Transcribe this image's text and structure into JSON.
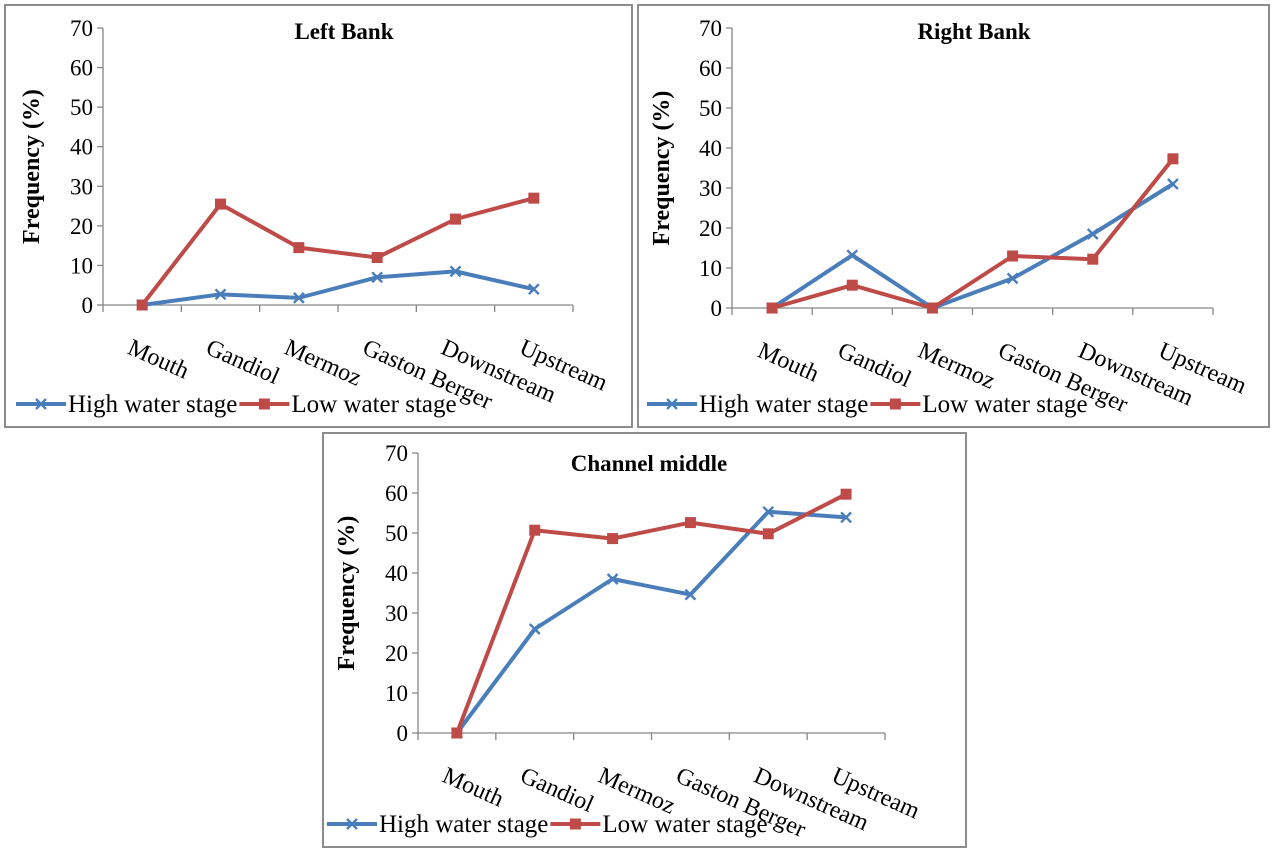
{
  "colors": {
    "high": "#4a7ebb",
    "low": "#be4b48",
    "axis": "#868686"
  },
  "chart_data": [
    {
      "type": "line",
      "title": "Left Bank",
      "ylabel": "Frequency (%)",
      "xlabel": "",
      "ylim": [
        0,
        70
      ],
      "yticks": [
        "0",
        "10",
        "20",
        "30",
        "40",
        "50",
        "60",
        "70"
      ],
      "categories": [
        "Mouth",
        "Gandiol",
        "Mermoz",
        "Gaston Berger",
        "Downstream",
        "Upstream"
      ],
      "legend_position": "bottom",
      "series": [
        {
          "name": "High water stage",
          "marker": "x",
          "values": [
            0,
            2.7,
            1.8,
            7,
            8.5,
            4
          ]
        },
        {
          "name": "Low water stage",
          "marker": "square",
          "values": [
            0,
            25.5,
            14.5,
            12,
            21.7,
            27
          ]
        }
      ]
    },
    {
      "type": "line",
      "title": "Right Bank",
      "ylabel": "Frequency (%)",
      "xlabel": "",
      "ylim": [
        0,
        70
      ],
      "yticks": [
        "0",
        "10",
        "20",
        "30",
        "40",
        "50",
        "60",
        "70"
      ],
      "categories": [
        "Mouth",
        "Gandiol",
        "Mermoz",
        "Gaston Berger",
        "Downstream",
        "Upstream"
      ],
      "legend_position": "bottom",
      "series": [
        {
          "name": "High water stage",
          "marker": "x",
          "values": [
            0,
            13.2,
            0,
            7.4,
            18.5,
            31
          ]
        },
        {
          "name": "Low water stage",
          "marker": "square",
          "values": [
            0,
            5.7,
            0,
            13,
            12.2,
            37.3
          ]
        }
      ]
    },
    {
      "type": "line",
      "title": "Channel middle",
      "ylabel": "Frequency (%)",
      "xlabel": "",
      "ylim": [
        0,
        70
      ],
      "yticks": [
        "0",
        "10",
        "20",
        "30",
        "40",
        "50",
        "60",
        "70"
      ],
      "categories": [
        "Mouth",
        "Gandiol",
        "Mermoz",
        "Gaston Berger",
        "Downstream",
        "Upstream"
      ],
      "legend_position": "bottom",
      "series": [
        {
          "name": "High water stage",
          "marker": "x",
          "values": [
            0,
            26,
            38.5,
            34.6,
            55.3,
            53.9
          ]
        },
        {
          "name": "Low water stage",
          "marker": "square",
          "values": [
            0,
            50.7,
            48.6,
            52.6,
            49.8,
            59.7
          ]
        }
      ]
    }
  ]
}
